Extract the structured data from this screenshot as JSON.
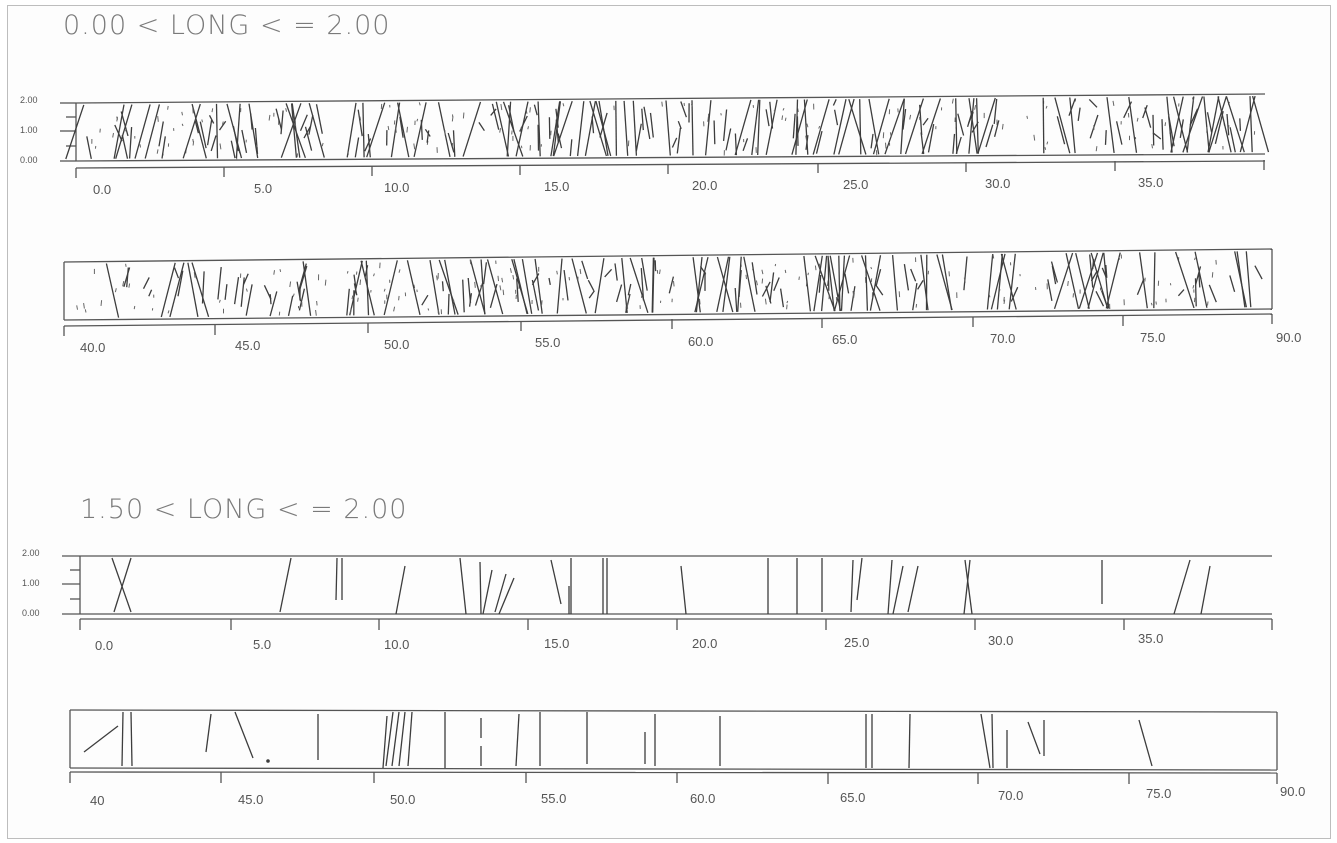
{
  "sections": [
    {
      "title": "0.00 < LONG < = 2.00",
      "y_labels": [
        "2.00",
        "1.00",
        "0.00"
      ],
      "row1_labels": [
        "0.0",
        "5.0",
        "10.0",
        "15.0",
        "20.0",
        "25.0",
        "30.0",
        "35.0"
      ],
      "row2_labels": [
        "40.0",
        "45.0",
        "50.0",
        "55.0",
        "60.0",
        "65.0",
        "70.0",
        "75.0",
        "90.0"
      ]
    },
    {
      "title": "1.50 < LONG < = 2.00",
      "y_labels": [
        "2.00",
        "1.00",
        "0.00"
      ],
      "row1_labels": [
        "0.0",
        "5.0",
        "10.0",
        "15.0",
        "20.0",
        "25.0",
        "30.0",
        "35.0"
      ],
      "row2_labels": [
        "40",
        "45.0",
        "50.0",
        "55.0",
        "60.0",
        "65.0",
        "70.0",
        "75.0",
        "90.0"
      ]
    }
  ]
}
